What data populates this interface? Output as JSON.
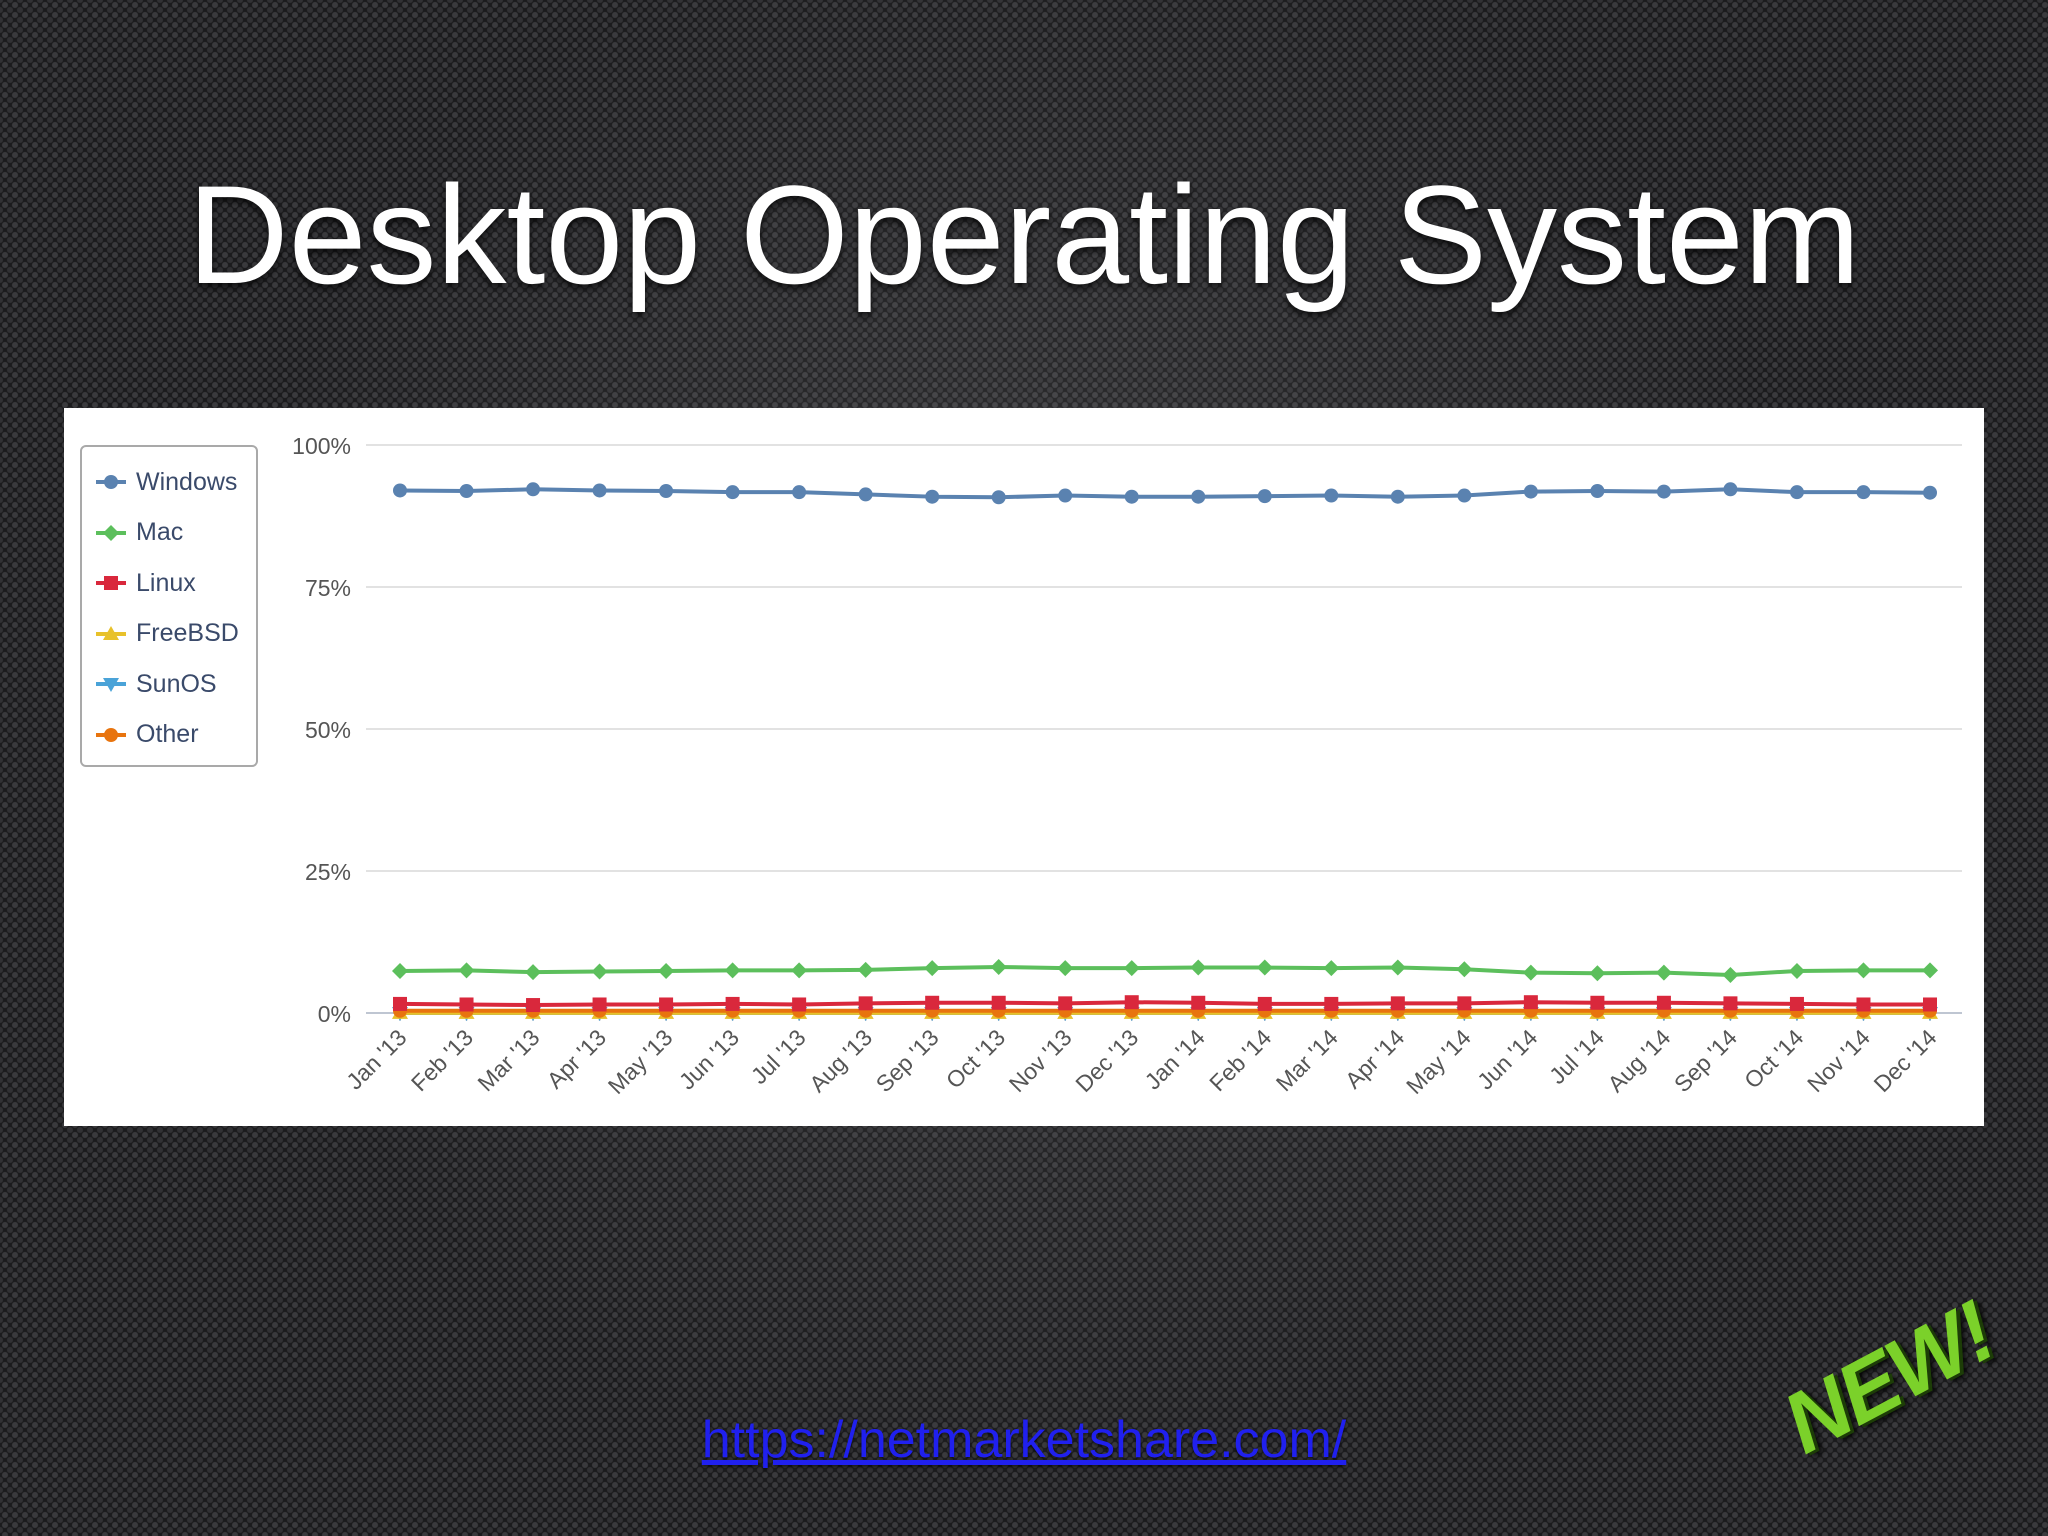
{
  "slide": {
    "title": "Desktop Operating System",
    "source_link": "https://netmarketshare.com/",
    "badge": "NEW!"
  },
  "chart_data": {
    "type": "line",
    "title": "",
    "xlabel": "",
    "ylabel": "",
    "ylim": [
      0,
      100
    ],
    "yticks": [
      "0%",
      "25%",
      "50%",
      "75%",
      "100%"
    ],
    "ytick_values": [
      0,
      25,
      50,
      75,
      100
    ],
    "grid": true,
    "legend_position": "top-left",
    "categories": [
      "Jan '13",
      "Feb '13",
      "Mar '13",
      "Apr '13",
      "May '13",
      "Jun '13",
      "Jul '13",
      "Aug '13",
      "Sep '13",
      "Oct '13",
      "Nov '13",
      "Dec '13",
      "Jan '14",
      "Feb '14",
      "Mar '14",
      "Apr '14",
      "May '14",
      "Jun '14",
      "Jul '14",
      "Aug '14",
      "Sep '14",
      "Oct '14",
      "Nov '14",
      "Dec '14"
    ],
    "series": [
      {
        "name": "Windows",
        "color": "#5a82b0",
        "marker": "circle",
        "values": [
          92,
          91.9,
          92.2,
          92,
          91.9,
          91.7,
          91.7,
          91.3,
          90.9,
          90.8,
          91.1,
          90.9,
          90.9,
          91,
          91.1,
          90.9,
          91.1,
          91.8,
          91.9,
          91.8,
          92.2,
          91.7,
          91.7,
          91.6
        ]
      },
      {
        "name": "Mac",
        "color": "#5cbf5c",
        "marker": "diamond",
        "values": [
          7.4,
          7.5,
          7.2,
          7.3,
          7.4,
          7.5,
          7.5,
          7.6,
          7.9,
          8.1,
          7.9,
          7.9,
          8,
          8,
          7.9,
          8,
          7.7,
          7.1,
          7,
          7.1,
          6.7,
          7.4,
          7.5,
          7.5
        ]
      },
      {
        "name": "Linux",
        "color": "#d9283c",
        "marker": "square",
        "values": [
          1.6,
          1.5,
          1.4,
          1.5,
          1.5,
          1.6,
          1.5,
          1.7,
          1.8,
          1.8,
          1.7,
          1.9,
          1.8,
          1.6,
          1.6,
          1.7,
          1.7,
          1.9,
          1.8,
          1.8,
          1.7,
          1.6,
          1.5,
          1.5
        ]
      },
      {
        "name": "FreeBSD",
        "color": "#e8c12a",
        "marker": "triangle",
        "values": [
          0.02,
          0.02,
          0.02,
          0.02,
          0.02,
          0.02,
          0.02,
          0.02,
          0.02,
          0.02,
          0.02,
          0.02,
          0.02,
          0.02,
          0.02,
          0.02,
          0.02,
          0.02,
          0.02,
          0.02,
          0.02,
          0.02,
          0.02,
          0.02
        ]
      },
      {
        "name": "SunOS",
        "color": "#4aa3d8",
        "marker": "triangle-down",
        "values": [
          0.01,
          0.01,
          0.01,
          0.01,
          0.01,
          0.01,
          0.01,
          0.01,
          0.01,
          0.01,
          0.01,
          0.01,
          0.01,
          0.01,
          0.01,
          0.01,
          0.01,
          0.01,
          0.01,
          0.01,
          0.01,
          0.01,
          0.01,
          0.01
        ]
      },
      {
        "name": "Other",
        "color": "#e8740e",
        "marker": "circle",
        "values": [
          0.4,
          0.4,
          0.4,
          0.4,
          0.4,
          0.4,
          0.4,
          0.4,
          0.4,
          0.4,
          0.4,
          0.4,
          0.4,
          0.4,
          0.4,
          0.4,
          0.4,
          0.4,
          0.4,
          0.4,
          0.4,
          0.4,
          0.4,
          0.4
        ]
      }
    ]
  }
}
